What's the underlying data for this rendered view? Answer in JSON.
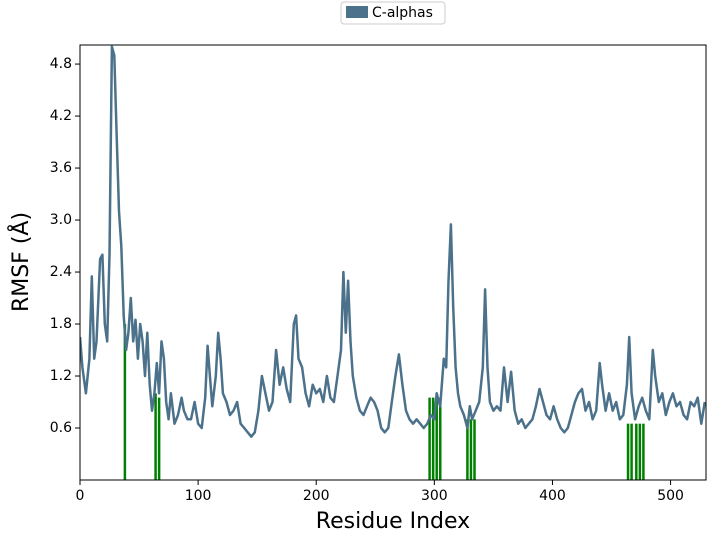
{
  "chart_data": {
    "type": "line",
    "xlabel": "Residue Index",
    "ylabel": "RMSF (Å)",
    "xlim": [
      0,
      530
    ],
    "ylim": [
      0,
      5.02
    ],
    "xticks": [
      0,
      100,
      200,
      300,
      400,
      500
    ],
    "yticks": [
      0.6,
      1.2,
      1.8,
      2.4,
      {
        "value": 3,
        "label": "3.0"
      },
      3.6,
      4.2,
      4.8
    ],
    "legend": "top",
    "x": [
      0,
      2,
      5,
      8,
      10,
      12,
      14,
      17,
      19,
      21,
      23,
      25,
      27,
      29,
      31,
      33,
      35,
      37,
      39,
      41,
      43,
      45,
      47,
      49,
      51,
      53,
      55,
      57,
      59,
      61,
      63,
      65,
      67,
      69,
      71,
      73,
      75,
      77,
      80,
      83,
      86,
      88,
      91,
      94,
      97,
      100,
      103,
      106,
      108,
      110,
      112,
      115,
      117,
      119,
      121,
      124,
      127,
      130,
      133,
      136,
      139,
      142,
      145,
      148,
      151,
      154,
      157,
      160,
      163,
      166,
      169,
      172,
      175,
      178,
      181,
      183,
      185,
      188,
      191,
      194,
      197,
      200,
      203,
      206,
      209,
      212,
      215,
      218,
      221,
      223,
      225,
      227,
      229,
      231,
      234,
      237,
      240,
      243,
      246,
      249,
      252,
      255,
      258,
      261,
      264,
      267,
      270,
      273,
      276,
      279,
      282,
      285,
      288,
      291,
      294,
      297,
      300,
      302,
      305,
      308,
      310,
      312,
      314,
      316,
      318,
      320,
      322,
      325,
      328,
      330,
      332,
      335,
      338,
      341,
      343,
      345,
      347,
      350,
      353,
      356,
      359,
      362,
      365,
      368,
      371,
      374,
      377,
      380,
      383,
      386,
      389,
      392,
      395,
      398,
      401,
      404,
      407,
      410,
      413,
      416,
      419,
      422,
      425,
      428,
      431,
      434,
      437,
      440,
      442,
      445,
      448,
      451,
      454,
      457,
      460,
      463,
      465,
      467,
      470,
      473,
      476,
      479,
      482,
      485,
      487,
      490,
      493,
      496,
      499,
      502,
      505,
      508,
      511,
      514,
      517,
      520,
      523,
      526,
      529
    ],
    "series": [
      {
        "name": "C-alphas",
        "color": "#4b718b",
        "values": [
          1.65,
          1.3,
          1.0,
          1.4,
          2.35,
          1.4,
          1.6,
          2.55,
          2.6,
          1.8,
          1.6,
          2.6,
          5.0,
          4.9,
          4.0,
          3.1,
          2.7,
          1.9,
          1.5,
          1.7,
          2.1,
          1.6,
          1.85,
          1.4,
          1.8,
          1.6,
          1.2,
          1.7,
          1.1,
          0.8,
          1.0,
          1.35,
          1.0,
          1.6,
          1.4,
          0.9,
          0.7,
          1.0,
          0.65,
          0.75,
          0.95,
          0.8,
          0.7,
          0.7,
          0.9,
          0.65,
          0.6,
          0.95,
          1.55,
          1.2,
          0.85,
          1.2,
          1.7,
          1.4,
          1.0,
          0.9,
          0.75,
          0.8,
          0.9,
          0.65,
          0.6,
          0.55,
          0.5,
          0.55,
          0.8,
          1.2,
          1.0,
          0.8,
          0.9,
          1.5,
          1.1,
          1.3,
          1.05,
          0.9,
          1.8,
          1.9,
          1.4,
          1.3,
          1.0,
          0.85,
          1.1,
          1.0,
          1.05,
          0.9,
          1.2,
          0.95,
          0.9,
          1.2,
          1.5,
          2.4,
          1.7,
          2.3,
          1.6,
          1.2,
          0.95,
          0.8,
          0.75,
          0.85,
          0.95,
          0.9,
          0.8,
          0.6,
          0.55,
          0.6,
          0.9,
          1.2,
          1.45,
          1.1,
          0.8,
          0.7,
          0.65,
          0.7,
          0.65,
          0.6,
          0.65,
          0.75,
          0.7,
          1.0,
          0.85,
          1.4,
          1.3,
          2.3,
          2.95,
          2.0,
          1.3,
          1.0,
          0.85,
          0.75,
          0.6,
          0.85,
          0.7,
          0.8,
          0.9,
          1.3,
          2.2,
          1.3,
          0.9,
          0.8,
          0.85,
          0.8,
          1.3,
          0.9,
          1.25,
          0.8,
          0.65,
          0.7,
          0.6,
          0.65,
          0.7,
          0.85,
          1.05,
          0.9,
          0.75,
          0.7,
          0.85,
          0.7,
          0.6,
          0.55,
          0.6,
          0.75,
          0.9,
          1.0,
          1.05,
          0.8,
          0.9,
          0.7,
          0.8,
          1.35,
          1.1,
          0.8,
          1.0,
          0.8,
          0.9,
          0.7,
          0.75,
          1.1,
          1.65,
          1.0,
          0.7,
          0.85,
          0.95,
          0.8,
          0.7,
          1.5,
          1.2,
          0.9,
          1.0,
          0.75,
          0.9,
          1.0,
          0.85,
          0.9,
          0.75,
          0.7,
          0.9,
          0.85,
          0.95,
          0.65,
          0.9
        ]
      }
    ],
    "highlights": {
      "color": "#008000",
      "x": [
        38,
        64,
        67,
        296,
        299,
        302,
        305,
        328,
        331,
        334,
        464,
        467,
        471,
        474,
        477
      ],
      "values": [
        1.8,
        1.0,
        0.95,
        0.95,
        0.95,
        1.0,
        0.95,
        0.7,
        0.7,
        0.7,
        0.65,
        0.65,
        0.65,
        0.65,
        0.65
      ]
    }
  }
}
